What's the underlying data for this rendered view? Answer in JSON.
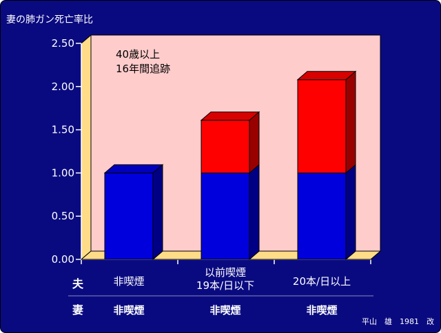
{
  "title": "妻の肺ガン死亡率比",
  "annotation_lines": [
    "40歳以上",
    "16年間追跡"
  ],
  "row_labels": {
    "husband": "夫",
    "wife": "妻"
  },
  "groups": [
    {
      "husband": [
        "非喫煙"
      ],
      "wife": "非喫煙"
    },
    {
      "husband": [
        "以前喫煙",
        "19本/日以下"
      ],
      "wife": "非喫煙"
    },
    {
      "husband": [
        "20本/日以上"
      ],
      "wife": "非喫煙"
    }
  ],
  "source": "平山　雄　1981　改",
  "colors": {
    "background": "#0a0a80",
    "plot_area": "#ffcccc",
    "floor": "#ffdd88",
    "baseline_segment": "#0000dd",
    "excess_segment": "#ff0000"
  },
  "chart_data": {
    "type": "bar",
    "stacked": true,
    "three_d": true,
    "title": "妻の肺ガン死亡率比",
    "categories": [
      "非喫煙",
      "以前喫煙 19本/日以下",
      "20本/日以上"
    ],
    "series": [
      {
        "values": [
          1.0,
          1.0,
          1.0
        ]
      },
      {
        "values": [
          0,
          0.61,
          1.08
        ]
      }
    ],
    "totals": [
      1.0,
      1.61,
      2.08
    ],
    "ylim": [
      0,
      2.5
    ],
    "yticks": [
      "0.00",
      "0.50",
      "1.00",
      "1.50",
      "2.00",
      "2.50"
    ],
    "grid": false
  }
}
